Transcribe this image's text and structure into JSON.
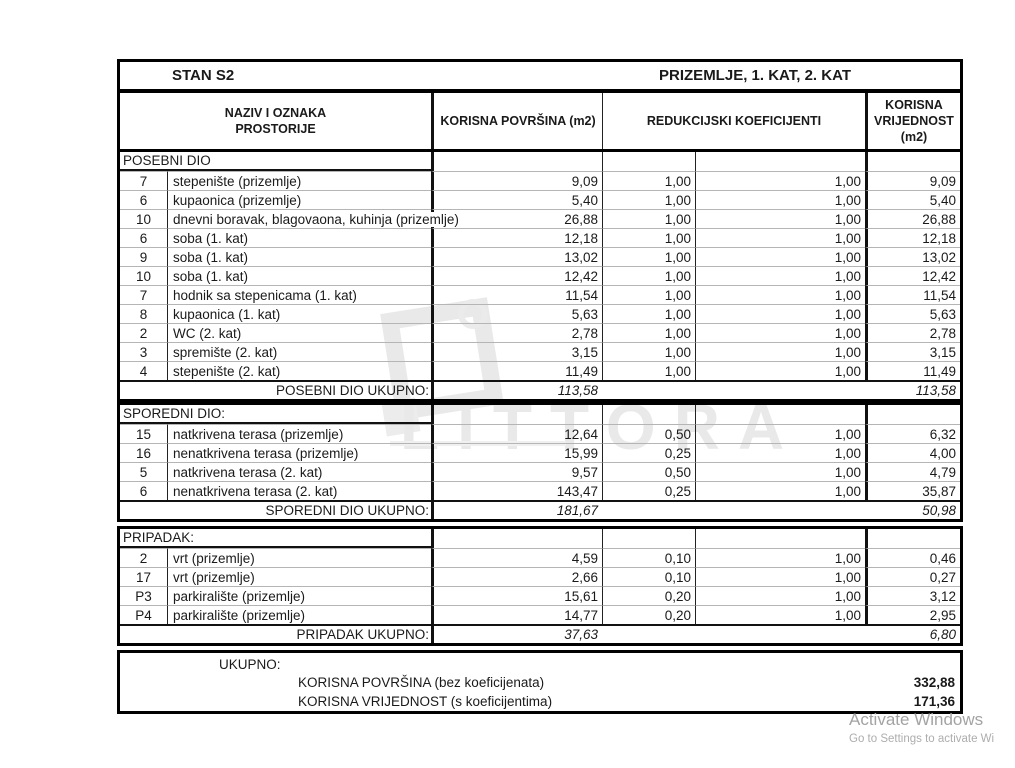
{
  "title": {
    "left": "STAN S2",
    "right": "PRIZEMLJE, 1. KAT, 2. KAT"
  },
  "header": {
    "col1": "NAZIV I OZNAKA PROSTORIJE",
    "col2": "KORISNA POVRŠINA (m2)",
    "col3": "REDUKCIJSKI KOEFICIJENTI",
    "col4": "KORISNA VRIJEDNOST (m2)"
  },
  "table": {
    "sections": [
      {
        "label": "POSEBNI DIO",
        "rows": [
          {
            "num": "7",
            "name": "stepenište (prizemlje)",
            "area": "9,09",
            "k1": "1,00",
            "k2": "1,00",
            "val": "9,09"
          },
          {
            "num": "6",
            "name": "kupaonica (prizemlje)",
            "area": "5,40",
            "k1": "1,00",
            "k2": "1,00",
            "val": "5,40"
          },
          {
            "num": "10",
            "name": "dnevni boravak, blagovaona, kuhinja (prizemlje)",
            "area": "26,88",
            "k1": "1,00",
            "k2": "1,00",
            "val": "26,88"
          },
          {
            "num": "6",
            "name": "soba (1. kat)",
            "area": "12,18",
            "k1": "1,00",
            "k2": "1,00",
            "val": "12,18"
          },
          {
            "num": "9",
            "name": "soba (1. kat)",
            "area": "13,02",
            "k1": "1,00",
            "k2": "1,00",
            "val": "13,02"
          },
          {
            "num": "10",
            "name": "soba (1. kat)",
            "area": "12,42",
            "k1": "1,00",
            "k2": "1,00",
            "val": "12,42"
          },
          {
            "num": "7",
            "name": "hodnik sa stepenicama (1. kat)",
            "area": "11,54",
            "k1": "1,00",
            "k2": "1,00",
            "val": "11,54"
          },
          {
            "num": "8",
            "name": "kupaonica (1. kat)",
            "area": "5,63",
            "k1": "1,00",
            "k2": "1,00",
            "val": "5,63"
          },
          {
            "num": "2",
            "name": "WC (2. kat)",
            "area": "2,78",
            "k1": "1,00",
            "k2": "1,00",
            "val": "2,78"
          },
          {
            "num": "3",
            "name": "spremište (2. kat)",
            "area": "3,15",
            "k1": "1,00",
            "k2": "1,00",
            "val": "3,15"
          },
          {
            "num": "4",
            "name": "stepenište (2. kat)",
            "area": "11,49",
            "k1": "1,00",
            "k2": "1,00",
            "val": "11,49"
          }
        ],
        "total": {
          "label": "POSEBNI DIO UKUPNO:",
          "area": "113,58",
          "value": "113,58"
        }
      },
      {
        "label": "SPOREDNI DIO:",
        "rows": [
          {
            "num": "15",
            "name": "natkrivena terasa (prizemlje)",
            "area": "12,64",
            "k1": "0,50",
            "k2": "1,00",
            "val": "6,32"
          },
          {
            "num": "16",
            "name": "nenatkrivena terasa (prizemlje)",
            "area": "15,99",
            "k1": "0,25",
            "k2": "1,00",
            "val": "4,00"
          },
          {
            "num": "5",
            "name": "natkrivena terasa (2. kat)",
            "area": "9,57",
            "k1": "0,50",
            "k2": "1,00",
            "val": "4,79"
          },
          {
            "num": "6",
            "name": "nenatkrivena terasa (2. kat)",
            "area": "143,47",
            "k1": "0,25",
            "k2": "1,00",
            "val": "35,87"
          }
        ],
        "total": {
          "label": "SPOREDNI DIO UKUPNO:",
          "area": "181,67",
          "value": "50,98"
        }
      },
      {
        "label": "PRIPADAK:",
        "rows": [
          {
            "num": "2",
            "name": "vrt (prizemlje)",
            "area": "4,59",
            "k1": "0,10",
            "k2": "1,00",
            "val": "0,46"
          },
          {
            "num": "17",
            "name": "vrt (prizemlje)",
            "area": "2,66",
            "k1": "0,10",
            "k2": "1,00",
            "val": "0,27"
          },
          {
            "num": "P3",
            "name": "parkiralište (prizemlje)",
            "area": "15,61",
            "k1": "0,20",
            "k2": "1,00",
            "val": "3,12"
          },
          {
            "num": "P4",
            "name": "parkiralište (prizemlje)",
            "area": "14,77",
            "k1": "0,20",
            "k2": "1,00",
            "val": "2,95"
          }
        ],
        "total": {
          "label": "PRIPADAK UKUPNO:",
          "area": "37,63",
          "value": "6,80"
        }
      }
    ],
    "grand_total": {
      "label": "UKUPNO:",
      "lines": [
        {
          "label": "KORISNA POVRŠINA (bez koeficijenata)",
          "value": "332,88"
        },
        {
          "label": "KORISNA VRIJEDNOST (s koeficijentima)",
          "value": "171,36"
        }
      ]
    }
  },
  "watermark": {
    "logo_text": "LITTORA"
  },
  "os_overlay": {
    "line1": "Activate Windows",
    "line2": "Go to Settings to activate Wi"
  },
  "colors": {
    "table_border": "#000000",
    "grid_line": "#b5b5b5",
    "watermark": "#e9e9e9",
    "os_overlay_text": "#a3a3a3"
  }
}
